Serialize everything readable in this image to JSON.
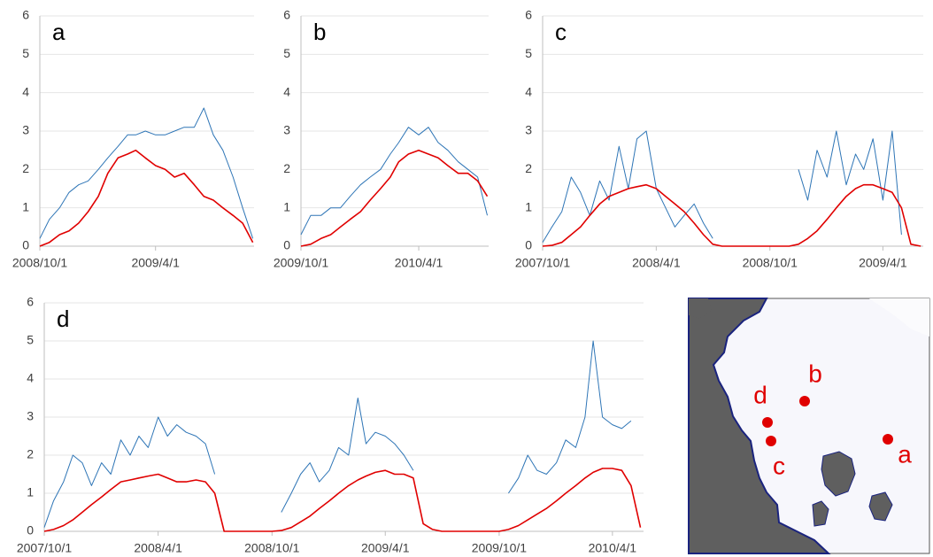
{
  "chart_data": [
    {
      "type": "line",
      "title": "a",
      "x": [
        "2008/10/1",
        "2008/10/16",
        "2008/11/1",
        "2008/11/16",
        "2008/12/1",
        "2008/12/16",
        "2009/1/1",
        "2009/1/16",
        "2009/2/1",
        "2009/2/16",
        "2009/3/1",
        "2009/3/16",
        "2009/4/1",
        "2009/4/16",
        "2009/5/1",
        "2009/5/16",
        "2009/6/1",
        "2009/6/16",
        "2009/7/1",
        "2009/7/16",
        "2009/8/1",
        "2009/8/16",
        "2009/9/1"
      ],
      "series": [
        {
          "color": "#2e75b6",
          "values": [
            0.2,
            0.7,
            1.0,
            1.4,
            1.6,
            1.7,
            2.0,
            2.3,
            2.6,
            2.9,
            2.9,
            3.0,
            2.9,
            2.9,
            3.0,
            3.1,
            3.1,
            3.6,
            2.9,
            2.5,
            1.8,
            1.0,
            0.2
          ]
        },
        {
          "color": "#e00000",
          "values": [
            0,
            0.1,
            0.3,
            0.4,
            0.6,
            0.9,
            1.3,
            1.9,
            2.3,
            2.4,
            2.5,
            2.3,
            2.1,
            2.0,
            1.8,
            1.9,
            1.6,
            1.3,
            1.2,
            1.0,
            0.8,
            0.6,
            0.1
          ]
        }
      ],
      "xlim": [
        "2008/10/1",
        "2009/9/3"
      ],
      "xticks": [
        "2008/10/1",
        "2009/4/1"
      ],
      "ylim": [
        0,
        6
      ],
      "yticks": [
        0,
        1,
        2,
        3,
        4,
        5,
        6
      ],
      "grid": true
    },
    {
      "type": "line",
      "title": "b",
      "x": [
        "2009/10/1",
        "2009/10/16",
        "2009/11/1",
        "2009/11/16",
        "2009/12/1",
        "2009/12/16",
        "2010/1/1",
        "2010/1/16",
        "2010/2/1",
        "2010/2/16",
        "2010/3/1",
        "2010/3/16",
        "2010/4/1",
        "2010/4/16",
        "2010/5/1",
        "2010/5/16",
        "2010/6/1",
        "2010/6/16",
        "2010/7/1",
        "2010/7/16"
      ],
      "series": [
        {
          "color": "#2e75b6",
          "values": [
            0.3,
            0.8,
            0.8,
            1.0,
            1.0,
            1.3,
            1.6,
            1.8,
            2.0,
            2.4,
            2.7,
            3.1,
            2.9,
            3.1,
            2.7,
            2.5,
            2.2,
            2.0,
            1.8,
            0.8
          ]
        },
        {
          "color": "#e00000",
          "values": [
            0,
            0.05,
            0.2,
            0.3,
            0.5,
            0.7,
            0.9,
            1.2,
            1.5,
            1.8,
            2.2,
            2.4,
            2.5,
            2.4,
            2.3,
            2.1,
            1.9,
            1.9,
            1.7,
            1.3
          ]
        }
      ],
      "xlim": [
        "2009/10/1",
        "2010/7/18"
      ],
      "xticks": [
        "2009/10/1",
        "2010/4/1"
      ],
      "ylim": [
        0,
        6
      ],
      "yticks": [
        0,
        1,
        2,
        3,
        4,
        5,
        6
      ],
      "grid": true
    },
    {
      "type": "line",
      "title": "c",
      "x": [
        "2007/10/1",
        "2007/10/16",
        "2007/11/1",
        "2007/11/16",
        "2007/12/1",
        "2007/12/16",
        "2008/1/1",
        "2008/1/16",
        "2008/2/1",
        "2008/2/16",
        "2008/3/1",
        "2008/3/16",
        "2008/4/1",
        "2008/4/16",
        "2008/5/1",
        "2008/5/16",
        "2008/6/1",
        "2008/6/16",
        "2008/7/1",
        "2008/7/16",
        "2008/8/1",
        "2008/8/16",
        "2008/9/1",
        "2008/9/16",
        "2008/10/1",
        "2008/10/16",
        "2008/11/1",
        "2008/11/16",
        "2008/12/1",
        "2008/12/16",
        "2009/1/1",
        "2009/1/16",
        "2009/2/1",
        "2009/2/16",
        "2009/3/1",
        "2009/3/16",
        "2009/4/1",
        "2009/4/16",
        "2009/5/1",
        "2009/5/16",
        "2009/6/1"
      ],
      "series": [
        {
          "color": "#2e75b6",
          "values": [
            0.1,
            0.5,
            0.9,
            1.8,
            1.4,
            0.8,
            1.7,
            1.2,
            2.6,
            1.5,
            2.8,
            3.0,
            1.5,
            1.0,
            0.5,
            0.8,
            1.1,
            0.6,
            0.2,
            null,
            null,
            null,
            null,
            null,
            null,
            null,
            null,
            2.0,
            1.2,
            2.5,
            1.8,
            3.0,
            1.6,
            2.4,
            2.0,
            2.8,
            1.2,
            3.0,
            0.3,
            null,
            null
          ]
        },
        {
          "color": "#e00000",
          "values": [
            0,
            0.02,
            0.1,
            0.3,
            0.5,
            0.8,
            1.1,
            1.3,
            1.4,
            1.5,
            1.55,
            1.6,
            1.5,
            1.3,
            1.1,
            0.9,
            0.6,
            0.3,
            0.05,
            0,
            0,
            0,
            0,
            0,
            0,
            0,
            0,
            0.05,
            0.2,
            0.4,
            0.7,
            1.0,
            1.3,
            1.5,
            1.6,
            1.6,
            1.5,
            1.4,
            1.0,
            0.05,
            0
          ]
        }
      ],
      "xlim": [
        "2007/10/1",
        "2009/6/5"
      ],
      "xticks": [
        "2007/10/1",
        "2008/4/1",
        "2008/10/1",
        "2009/4/1"
      ],
      "ylim": [
        0,
        6
      ],
      "yticks": [
        0,
        1,
        2,
        3,
        4,
        5,
        6
      ],
      "grid": true
    },
    {
      "type": "line",
      "title": "d",
      "x": [
        "2007/10/1",
        "2007/10/16",
        "2007/11/1",
        "2007/11/16",
        "2007/12/1",
        "2007/12/16",
        "2008/1/1",
        "2008/1/16",
        "2008/2/1",
        "2008/2/16",
        "2008/3/1",
        "2008/3/16",
        "2008/4/1",
        "2008/4/16",
        "2008/5/1",
        "2008/5/16",
        "2008/6/1",
        "2008/6/16",
        "2008/7/1",
        "2008/7/16",
        "2008/8/1",
        "2008/8/16",
        "2008/9/1",
        "2008/9/16",
        "2008/10/1",
        "2008/10/16",
        "2008/11/1",
        "2008/11/16",
        "2008/12/1",
        "2008/12/16",
        "2009/1/1",
        "2009/1/16",
        "2009/2/1",
        "2009/2/16",
        "2009/3/1",
        "2009/3/16",
        "2009/4/1",
        "2009/4/16",
        "2009/5/1",
        "2009/5/16",
        "2009/6/1",
        "2009/6/16",
        "2009/7/1",
        "2009/7/16",
        "2009/8/1",
        "2009/8/16",
        "2009/9/1",
        "2009/9/16",
        "2009/10/1",
        "2009/10/16",
        "2009/11/1",
        "2009/11/16",
        "2009/12/1",
        "2009/12/16",
        "2010/1/1",
        "2010/1/16",
        "2010/2/1",
        "2010/2/16",
        "2010/3/1",
        "2010/3/16",
        "2010/4/1",
        "2010/4/16",
        "2010/5/1",
        "2010/5/16"
      ],
      "series": [
        {
          "color": "#2e75b6",
          "values": [
            0.1,
            0.8,
            1.3,
            2.0,
            1.8,
            1.2,
            1.8,
            1.5,
            2.4,
            2.0,
            2.5,
            2.2,
            3.0,
            2.5,
            2.8,
            2.6,
            2.5,
            2.3,
            1.5,
            null,
            null,
            null,
            null,
            null,
            null,
            0.5,
            1.0,
            1.5,
            1.8,
            1.3,
            1.6,
            2.2,
            2.0,
            3.5,
            2.3,
            2.6,
            2.5,
            2.3,
            2.0,
            1.6,
            null,
            null,
            null,
            null,
            null,
            null,
            null,
            null,
            null,
            1.0,
            1.4,
            2.0,
            1.6,
            1.5,
            1.8,
            2.4,
            2.2,
            3.0,
            5.0,
            3.0,
            2.8,
            2.7,
            2.9,
            null
          ]
        },
        {
          "color": "#e00000",
          "values": [
            0,
            0.05,
            0.15,
            0.3,
            0.5,
            0.7,
            0.9,
            1.1,
            1.3,
            1.35,
            1.4,
            1.45,
            1.5,
            1.4,
            1.3,
            1.3,
            1.35,
            1.3,
            1.0,
            0,
            0,
            0,
            0,
            0,
            0,
            0.02,
            0.1,
            0.25,
            0.4,
            0.6,
            0.8,
            1.0,
            1.2,
            1.35,
            1.45,
            1.55,
            1.6,
            1.5,
            1.5,
            1.4,
            0.2,
            0.05,
            0,
            0,
            0,
            0,
            0,
            0,
            0,
            0.05,
            0.15,
            0.3,
            0.45,
            0.6,
            0.8,
            1.0,
            1.2,
            1.4,
            1.55,
            1.65,
            1.65,
            1.6,
            1.2,
            0.1
          ]
        }
      ],
      "xlim": [
        "2007/10/1",
        "2010/5/21"
      ],
      "xticks": [
        "2007/10/1",
        "2008/4/1",
        "2008/10/1",
        "2009/4/1",
        "2009/10/1",
        "2010/4/1"
      ],
      "ylim": [
        0,
        6
      ],
      "yticks": [
        0,
        1,
        2,
        3,
        4,
        5,
        6
      ],
      "grid": true
    }
  ],
  "map": {
    "sites": [
      "a",
      "b",
      "c",
      "d"
    ]
  }
}
